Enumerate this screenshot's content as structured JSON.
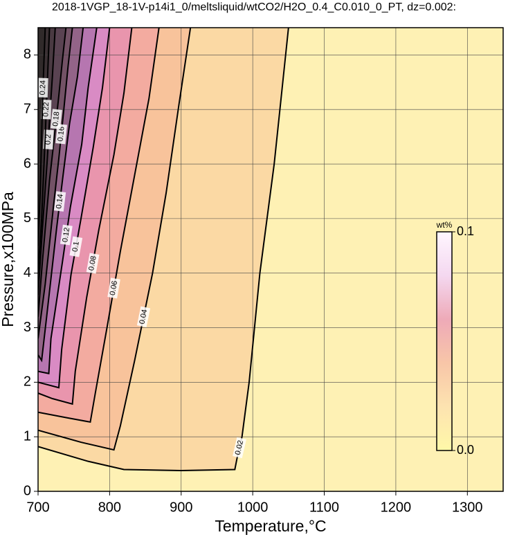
{
  "chart_data": {
    "type": "contour",
    "title": "2018-1VGP_18-1V-p14i1_0/meltsliquid/wtCO2/H2O_0.4_C0.010_0_PT, dz=0.002:",
    "x_label": "Temperature,°C",
    "y_label": "Pressure,x100MPa",
    "xlim": [
      700,
      1350
    ],
    "ylim": [
      0,
      8.5
    ],
    "xticks": [
      700,
      800,
      900,
      1000,
      1100,
      1200,
      1300
    ],
    "yticks": [
      0,
      1,
      2,
      3,
      4,
      5,
      6,
      7,
      8
    ],
    "grid": true,
    "background": "#fef1b4",
    "contours": [
      {
        "level": 0.02,
        "color": "#fbd9a4",
        "x": [
          1050,
          1030,
          1010,
          995,
          985,
          978,
          975,
          900,
          820,
          770,
          700
        ],
        "y": [
          8.5,
          6,
          4,
          2,
          1,
          0.6,
          0.4,
          0.38,
          0.4,
          0.55,
          0.82
        ]
      },
      {
        "level": 0.04,
        "color": "#f8c39b",
        "x": [
          913,
          897,
          879,
          860,
          835,
          815,
          806,
          760,
          700
        ],
        "y": [
          8.5,
          7.1,
          5.47,
          4,
          2.4,
          1.2,
          0.76,
          0.9,
          1.12
        ]
      },
      {
        "level": 0.06,
        "color": "#f3aba0",
        "x": [
          869,
          855,
          835,
          815,
          797,
          780,
          773,
          740,
          700
        ],
        "y": [
          8.5,
          7.2,
          5.8,
          4.4,
          3.05,
          1.8,
          1.27,
          1.35,
          1.45
        ]
      },
      {
        "level": 0.08,
        "color": "#e995ad",
        "x": [
          831,
          820,
          806,
          785,
          768,
          752,
          748,
          720,
          700
        ],
        "y": [
          8.5,
          7.3,
          6.17,
          4.8,
          3.56,
          2.2,
          1.6,
          1.7,
          1.8
        ]
      },
      {
        "level": 0.1,
        "color": "#d98bc4",
        "x": [
          800,
          790,
          777,
          760,
          746,
          733,
          729,
          700
        ],
        "y": [
          8.5,
          7.4,
          6.3,
          5,
          3.97,
          2.6,
          1.9,
          2.0
        ]
      },
      {
        "level": 0.12,
        "color": "#b676b0",
        "x": [
          782,
          770,
          761,
          745,
          734,
          718,
          715,
          700
        ],
        "y": [
          8.5,
          7.4,
          6.36,
          5.2,
          4.2,
          2.8,
          2.16,
          2.2
        ]
      },
      {
        "level": 0.14,
        "color": "#936488",
        "x": [
          763,
          755,
          744,
          735,
          726,
          712,
          705,
          700
        ],
        "y": [
          8.5,
          7.6,
          6.74,
          5.8,
          4.83,
          3.2,
          2.4,
          2.5
        ]
      },
      {
        "level": 0.16,
        "color": "#735266",
        "x": [
          748,
          742,
          736,
          729,
          722,
          710,
          700
        ],
        "y": [
          8.5,
          7.8,
          7.0,
          6.1,
          5.28,
          3.8,
          2.8
        ]
      },
      {
        "level": 0.18,
        "color": "#5a4352",
        "x": [
          739,
          734,
          729,
          722,
          716,
          706,
          700
        ],
        "y": [
          8.5,
          7.9,
          7.25,
          6.4,
          5.7,
          4.2,
          3.2
        ]
      },
      {
        "level": 0.2,
        "color": "#4a3a42",
        "x": [
          724,
          720,
          716,
          713,
          706,
          700
        ],
        "y": [
          8.5,
          7.6,
          6.8,
          6.1,
          4.8,
          3.6
        ]
      },
      {
        "level": 0.22,
        "color": "#3b3134",
        "x": [
          716,
          713,
          710,
          705,
          700
        ],
        "y": [
          8.5,
          7.5,
          6.5,
          5,
          4
        ]
      },
      {
        "level": 0.24,
        "color": "#302a2a",
        "x": [
          710,
          708,
          706,
          703,
          700
        ],
        "y": [
          8.5,
          7.8,
          7.0,
          5.5,
          4.5
        ]
      }
    ],
    "colorbar": {
      "label": "wt%",
      "lim": [
        0,
        0.1
      ],
      "colors": [
        "#fff8a8",
        "#fde3b0",
        "#f8c6a8",
        "#eeaab8",
        "#f4d8f0",
        "#fff6ff"
      ],
      "ticks": [
        {
          "value": 0,
          "label": "0.0"
        },
        0.1
      ]
    }
  }
}
